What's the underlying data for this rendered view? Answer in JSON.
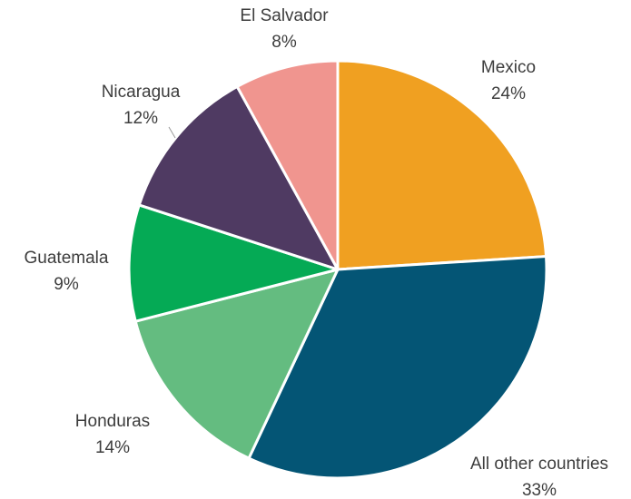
{
  "chart_data": {
    "type": "pie",
    "start_angle_deg": 0,
    "direction": "clockwise",
    "slices": [
      {
        "label": "Mexico",
        "value": 24,
        "value_label": "24%",
        "color": "#F0A021"
      },
      {
        "label": "All other countries",
        "value": 33,
        "value_label": "33%",
        "color": "#045575"
      },
      {
        "label": "Honduras",
        "value": 14,
        "value_label": "14%",
        "color": "#64BC80"
      },
      {
        "label": "Guatemala",
        "value": 9,
        "value_label": "9%",
        "color": "#05AA55"
      },
      {
        "label": "Nicaragua",
        "value": 12,
        "value_label": "12%",
        "color": "#4F3A62"
      },
      {
        "label": "El Salvador",
        "value": 8,
        "value_label": "8%",
        "color": "#F0958F"
      }
    ]
  }
}
